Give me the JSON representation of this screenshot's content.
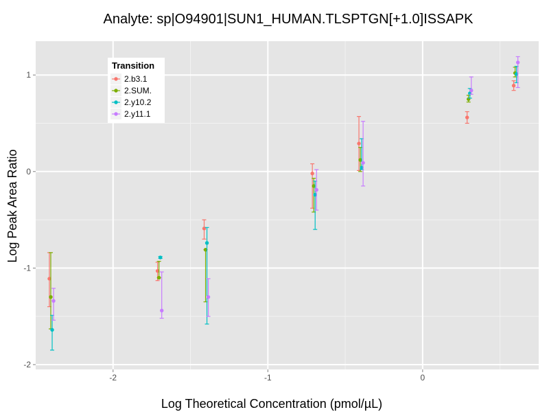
{
  "chart_data": {
    "type": "scatter",
    "title": "Analyte: sp|O94901|SUN1_HUMAN.TLSPTGN[+1.0]ISSAPK",
    "xlabel": "Log Theoretical Concentration (pmol/µL)",
    "ylabel": "Log Peak Area Ratio",
    "xlim": [
      -2.5,
      0.75
    ],
    "ylim": [
      -2.05,
      1.35
    ],
    "x_ticks": [
      -2,
      -1,
      0
    ],
    "y_ticks": [
      -2,
      -1,
      0,
      1
    ],
    "x_tick_labels": [
      "-2",
      "-1",
      "0"
    ],
    "y_tick_labels": [
      "-2",
      "-1",
      "0",
      "1"
    ],
    "grid": true,
    "error_bars": true,
    "legend": {
      "title": "Transition",
      "position": "top-left"
    },
    "x": [
      -2.398,
      -1.699,
      -1.398,
      -0.699,
      -0.398,
      0.301,
      0.602
    ],
    "series": [
      {
        "name": "2.b3.1",
        "color": "#f8766d",
        "y": [
          -1.11,
          -1.03,
          -0.59,
          -0.02,
          0.29,
          0.56,
          0.89
        ],
        "ylow": [
          -1.4,
          -1.13,
          -0.7,
          -0.38,
          0.01,
          0.5,
          0.84
        ],
        "yhigh": [
          -0.84,
          -0.94,
          -0.5,
          0.08,
          0.57,
          0.62,
          0.94
        ]
      },
      {
        "name": "2.SUM.",
        "color": "#7cae00",
        "y": [
          -1.3,
          -1.1,
          -0.81,
          -0.15,
          0.12,
          0.75,
          1.02
        ],
        "ylow": [
          -1.63,
          -1.1,
          -1.35,
          -0.42,
          0.0,
          0.72,
          0.98
        ],
        "yhigh": [
          -0.84,
          -0.93,
          -0.81,
          -0.07,
          0.25,
          0.79,
          1.08
        ]
      },
      {
        "name": "2.y10.2",
        "color": "#00bfc4",
        "y": [
          -1.64,
          -0.89,
          -0.74,
          -0.24,
          0.04,
          0.81,
          1.01
        ],
        "ylow": [
          -1.85,
          -0.9,
          -1.58,
          -0.6,
          0.02,
          0.76,
          0.92
        ],
        "yhigh": [
          -1.49,
          -0.88,
          -0.58,
          -0.1,
          0.34,
          0.86,
          1.09
        ]
      },
      {
        "name": "2.y11.1",
        "color": "#c77cff",
        "y": [
          -1.34,
          -1.44,
          -1.3,
          -0.19,
          0.09,
          0.84,
          1.13
        ],
        "ylow": [
          -1.54,
          -1.52,
          -1.5,
          -0.4,
          -0.15,
          0.8,
          0.87
        ],
        "yhigh": [
          -1.21,
          -1.04,
          -1.11,
          0.02,
          0.52,
          0.98,
          1.19
        ]
      }
    ]
  }
}
